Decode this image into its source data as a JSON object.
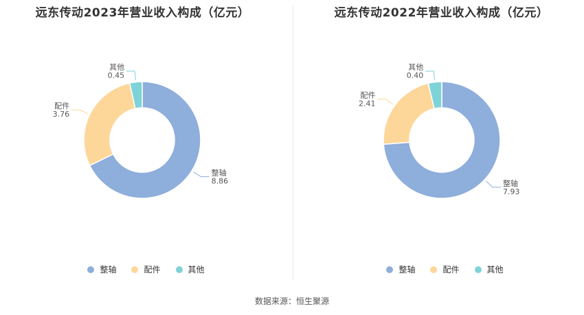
{
  "source": "数据来源：恒生聚源",
  "colors": {
    "整轴": "#8eaedb",
    "配件": "#fdd79a",
    "其他": "#7ed3d8"
  },
  "chart_data": [
    {
      "type": "pie",
      "variant": "donut",
      "title": "远东传动2023年营业收入构成（亿元）",
      "categories": [
        "整轴",
        "配件",
        "其他"
      ],
      "values": [
        8.86,
        3.76,
        0.45
      ],
      "value_labels": [
        "8.86",
        "3.76",
        "0.45"
      ],
      "legend": "bottom"
    },
    {
      "type": "pie",
      "variant": "donut",
      "title": "远东传动2022年营业收入构成（亿元）",
      "categories": [
        "整轴",
        "配件",
        "其他"
      ],
      "values": [
        7.93,
        2.41,
        0.4
      ],
      "value_labels": [
        "7.93",
        "2.41",
        "0.40"
      ],
      "legend": "bottom"
    }
  ]
}
